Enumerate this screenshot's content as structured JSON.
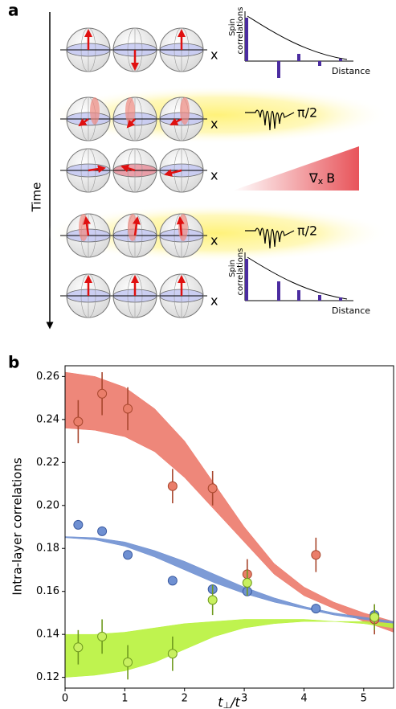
{
  "panel_a": {
    "label": "a",
    "time_label": "Time",
    "rows": [
      {
        "axis_label": "x"
      },
      {
        "axis_label": "x"
      },
      {
        "axis_label": "x"
      },
      {
        "axis_label": "x"
      },
      {
        "axis_label": "x"
      }
    ],
    "insets": [
      {
        "y_label_lines": [
          "Spin",
          "correlations"
        ],
        "x_label": "Distance"
      },
      {
        "y_label_lines": [
          "Spin",
          "correlations"
        ],
        "x_label": "Distance"
      }
    ],
    "pulse_labels": [
      "π/2",
      "π/2"
    ],
    "gradient_label": {
      "symbol": "∇",
      "subscript": "x",
      "field": "B"
    }
  },
  "chart_data": {
    "type": "scatter",
    "panel_label": "b",
    "y_label": "Intra-layer correlations",
    "x_label": {
      "base": "t",
      "subscript": "⊥",
      "rest": "/t"
    },
    "xlim": [
      0,
      5.5
    ],
    "xticks": [
      0,
      1,
      2,
      3,
      4,
      5
    ],
    "ylim": [
      0.115,
      0.265
    ],
    "yticks": [
      0.12,
      0.14,
      0.16,
      0.18,
      {
        "value": 0.2,
        "label": "0.20"
      },
      0.22,
      0.24,
      0.26
    ],
    "bands": [
      {
        "color": "#ec7a6c",
        "x": [
          0,
          0.5,
          1,
          1.5,
          2,
          2.5,
          3,
          3.5,
          4,
          4.5,
          5,
          5.5
        ],
        "upper": [
          0.262,
          0.26,
          0.255,
          0.245,
          0.23,
          0.21,
          0.19,
          0.173,
          0.162,
          0.155,
          0.15,
          0.146
        ],
        "lower": [
          0.236,
          0.235,
          0.232,
          0.225,
          0.213,
          0.198,
          0.183,
          0.168,
          0.158,
          0.152,
          0.146,
          0.141
        ]
      },
      {
        "color": "#6f90d2",
        "x": [
          0,
          0.5,
          1,
          1.5,
          2,
          2.5,
          3,
          3.5,
          4,
          4.5,
          5,
          5.5
        ],
        "upper": [
          0.1855,
          0.185,
          0.183,
          0.179,
          0.174,
          0.168,
          0.162,
          0.157,
          0.153,
          0.15,
          0.148,
          0.146
        ],
        "lower": [
          0.185,
          0.184,
          0.181,
          0.176,
          0.17,
          0.164,
          0.159,
          0.155,
          0.152,
          0.149,
          0.147,
          0.145
        ]
      },
      {
        "color": "#b8f23c",
        "x": [
          0,
          0.5,
          1,
          1.5,
          2,
          2.5,
          3,
          3.5,
          4,
          4.5,
          5,
          5.5
        ],
        "upper": [
          0.14,
          0.14,
          0.141,
          0.143,
          0.145,
          0.146,
          0.147,
          0.147,
          0.147,
          0.146,
          0.146,
          0.145
        ],
        "lower": [
          0.12,
          0.121,
          0.123,
          0.127,
          0.133,
          0.139,
          0.143,
          0.145,
          0.146,
          0.146,
          0.145,
          0.143
        ]
      }
    ],
    "series": [
      {
        "color": "#ea7e6a",
        "edge": "#a8472e",
        "x": [
          0.22,
          0.62,
          1.05,
          1.8,
          2.47,
          3.05,
          4.2,
          5.18
        ],
        "values": [
          0.239,
          0.252,
          0.245,
          0.209,
          0.208,
          0.168,
          0.177,
          0.147
        ],
        "errors": [
          0.01,
          0.01,
          0.01,
          0.008,
          0.008,
          0.007,
          0.008,
          0.007
        ]
      },
      {
        "color": "#6f90d2",
        "edge": "#3a5aa0",
        "x": [
          0.22,
          0.62,
          1.05,
          1.8,
          2.47,
          3.05,
          4.2,
          5.18
        ],
        "values": [
          0.191,
          0.188,
          0.177,
          0.165,
          0.161,
          0.16,
          0.152,
          0.149
        ]
      },
      {
        "color": "#c8f060",
        "edge": "#6f9a1e",
        "x": [
          0.22,
          0.62,
          1.05,
          1.8,
          2.47,
          3.05,
          5.18
        ],
        "values": [
          0.134,
          0.139,
          0.127,
          0.131,
          0.156,
          0.164,
          0.148
        ],
        "errors": [
          0.008,
          0.008,
          0.008,
          0.008,
          0.007,
          0.006,
          0.006
        ]
      }
    ]
  }
}
